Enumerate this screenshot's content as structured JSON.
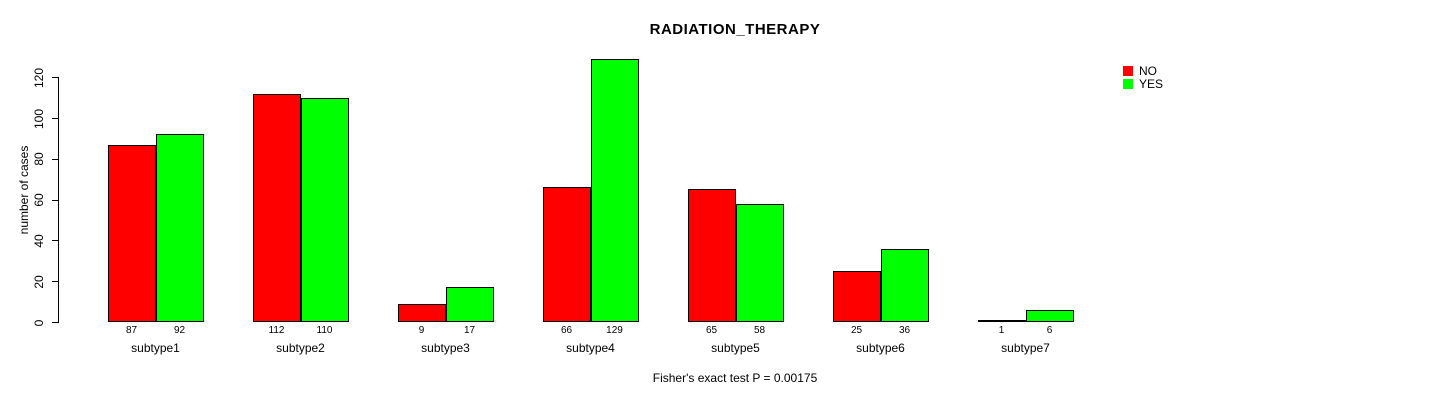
{
  "title": "RADIATION_THERAPY",
  "footer": "Fisher's exact test P = 0.00175",
  "legend": {
    "items": [
      {
        "label": "NO",
        "color": "#ff0000"
      },
      {
        "label": "YES",
        "color": "#00ff00"
      }
    ]
  },
  "chart_data": {
    "type": "bar",
    "title": "RADIATION_THERAPY",
    "xlabel": "",
    "ylabel": "number of cases",
    "categories": [
      "subtype1",
      "subtype2",
      "subtype3",
      "subtype4",
      "subtype5",
      "subtype6",
      "subtype7"
    ],
    "series": [
      {
        "name": "NO",
        "color": "#ff0000",
        "values": [
          87,
          112,
          9,
          66,
          65,
          25,
          1
        ]
      },
      {
        "name": "YES",
        "color": "#00ff00",
        "values": [
          92,
          110,
          17,
          129,
          58,
          36,
          6
        ]
      }
    ],
    "bar_value_labels": [
      [
        "87",
        "92"
      ],
      [
        "112",
        "110"
      ],
      [
        "9",
        "17"
      ],
      [
        "66",
        "129"
      ],
      [
        "65",
        "58"
      ],
      [
        "25",
        "36"
      ],
      [
        "1",
        "6"
      ]
    ],
    "ylim": [
      0,
      120
    ],
    "yticks": [
      0,
      20,
      40,
      60,
      80,
      100,
      120
    ],
    "grid": false,
    "legend_position": "top-right",
    "annotation": "Fisher's exact test P = 0.00175"
  }
}
